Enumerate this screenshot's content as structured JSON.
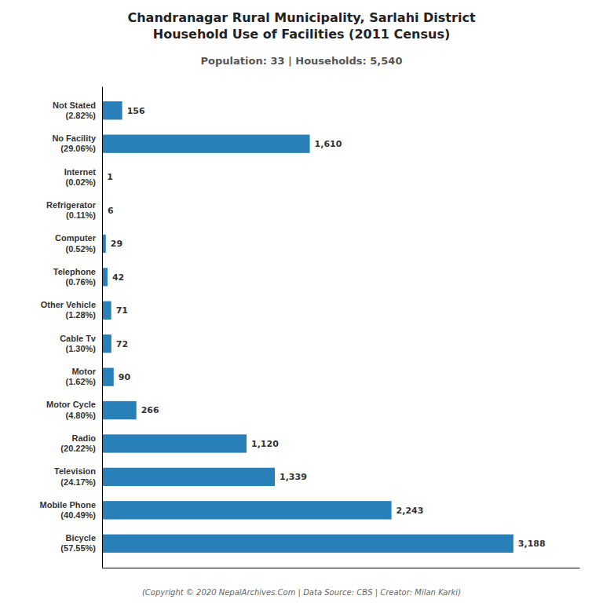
{
  "chart_data": {
    "type": "bar",
    "orientation": "horizontal",
    "title": "Chandranagar Rural Municipality, Sarlahi District\nHousehold Use of Facilities (2011 Census)",
    "subtitle": "Population: 33 | Households: 5,540",
    "annotations": [
      "(Copyright © 2020 NepalArchives.Com | Data Source: CBS | Creator: Milan Karki)"
    ],
    "categories": [
      "Not Stated\n(2.82%)",
      "No Facility\n(29.06%)",
      "Internet\n(0.02%)",
      "Refrigerator\n(0.11%)",
      "Computer\n(0.52%)",
      "Telephone\n(0.76%)",
      "Other Vehicle\n(1.28%)",
      "Cable Tv\n(1.30%)",
      "Motor\n(1.62%)",
      "Motor Cycle\n(4.80%)",
      "Radio\n(20.22%)",
      "Television\n(24.17%)",
      "Mobile Phone\n(40.49%)",
      "Bicycle\n(57.55%)"
    ],
    "values": [
      156,
      1610,
      1,
      6,
      29,
      42,
      71,
      72,
      90,
      266,
      1120,
      1339,
      2243,
      3188
    ],
    "value_labels": [
      "156",
      "1,610",
      "1",
      "6",
      "29",
      "42",
      "71",
      "72",
      "90",
      "266",
      "1,120",
      "1,339",
      "2,243",
      "3,188"
    ],
    "data_labels": true,
    "color": "#2980b9",
    "xlim": [
      0,
      3700
    ],
    "grid": false,
    "tick_labels": "y"
  }
}
